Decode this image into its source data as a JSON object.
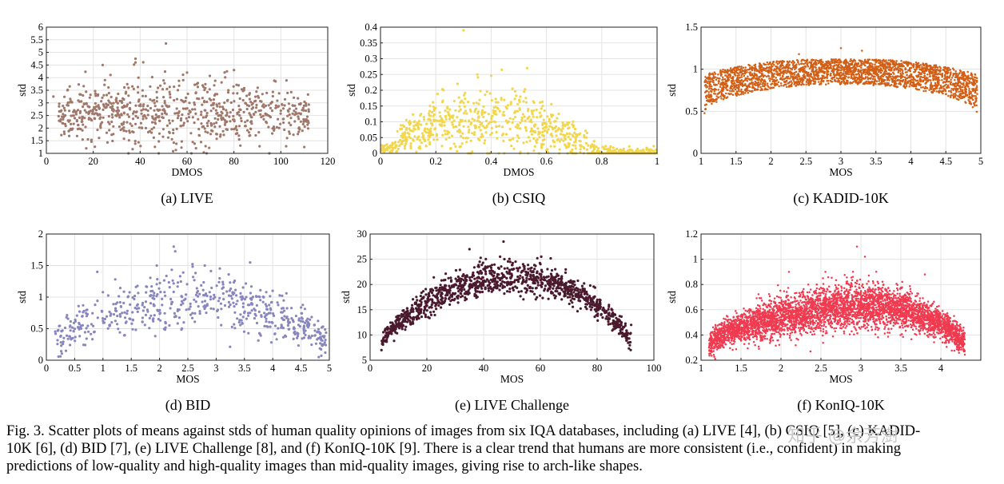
{
  "figure": {
    "caption_lines": [
      "Fig. 3.  Scatter plots of means against stds of human quality opinions of images from six IQA databases, including (a) LIVE [4], (b) CSIQ [5], (c) KADID-",
      "10K [6], (d) BID [7], (e) LIVE Challenge [8], and (f) KonIQ-10K [9]. There is a clear trend that humans are more consistent (i.e., confident) in making",
      "predictions of low-quality and high-quality images than mid-quality images, giving rise to arch-like shapes."
    ],
    "watermark": "知乎 @余芳澍"
  },
  "chart_data": [
    {
      "type": "scatter",
      "id": "a",
      "subcaption": "(a) LIVE",
      "xlabel": "DMOS",
      "ylabel": "std",
      "color": "#a0786a",
      "xlim": [
        0,
        120
      ],
      "ylim": [
        1,
        6
      ],
      "xticks": [
        0,
        20,
        40,
        60,
        80,
        100,
        120
      ],
      "yticks": [
        1,
        1.5,
        2,
        2.5,
        3,
        3.5,
        4,
        4.5,
        5,
        5.5,
        6
      ],
      "ytick_labels": [
        "1",
        "1.5",
        "2",
        "2.5",
        "3",
        "3.5",
        "4",
        "4.5",
        "5",
        "5.5",
        "6"
      ],
      "trend": {
        "kind": "flat",
        "x_range": [
          5,
          112
        ],
        "center": 2.6,
        "spread": 0.55
      },
      "outliers": [
        [
          51,
          5.35
        ],
        [
          38,
          4.75
        ],
        [
          38,
          4.6
        ],
        [
          24,
          4.5
        ],
        [
          80,
          4.3
        ],
        [
          77,
          4.25
        ],
        [
          60,
          4.2
        ],
        [
          3,
          3.25
        ],
        [
          110,
          1.25
        ],
        [
          17,
          1.2
        ]
      ],
      "n_points": 780
    },
    {
      "type": "scatter",
      "id": "b",
      "subcaption": "(b) CSIQ",
      "xlabel": "DMOS",
      "ylabel": "std",
      "color": "#f2d74e",
      "xlim": [
        0,
        1
      ],
      "ylim": [
        0,
        0.4
      ],
      "xticks": [
        0,
        0.2,
        0.4,
        0.6,
        0.8,
        1
      ],
      "xtick_labels": [
        "0",
        "0.2",
        "0.4",
        "0.6",
        "0.8",
        "1"
      ],
      "yticks": [
        0,
        0.05,
        0.1,
        0.15,
        0.2,
        0.25,
        0.3,
        0.35,
        0.4
      ],
      "ytick_labels": [
        "0",
        "0.05",
        "0.1",
        "0.15",
        "0.2",
        "0.25",
        "0.3",
        "0.35",
        "0.4"
      ],
      "trend": {
        "kind": "arch_lower",
        "x_range": [
          0,
          1
        ],
        "peak": 0.11,
        "spread": 0.045
      },
      "outliers": [
        [
          0.3,
          0.39
        ],
        [
          0.53,
          0.27
        ],
        [
          0.35,
          0.25
        ],
        [
          0.95,
          0.01
        ],
        [
          0.98,
          0.01
        ]
      ],
      "n_points": 900
    },
    {
      "type": "scatter",
      "id": "c",
      "subcaption": "(c) KADID-10K",
      "xlabel": "MOS",
      "ylabel": "std",
      "color": "#d25f16",
      "xlim": [
        1,
        5
      ],
      "ylim": [
        0,
        1.5
      ],
      "xticks": [
        1,
        1.5,
        2,
        2.5,
        3,
        3.5,
        4,
        4.5,
        5
      ],
      "xtick_labels": [
        "1",
        "1.5",
        "2",
        "2.5",
        "3",
        "3.5",
        "4",
        "4.5",
        "5"
      ],
      "yticks": [
        0,
        0.5,
        1,
        1.5
      ],
      "ytick_labels": [
        "0",
        "0.5",
        "1",
        "1.5"
      ],
      "trend": {
        "kind": "arch_band",
        "x_range": [
          1.05,
          4.95
        ],
        "top": 1.12,
        "bottom_peak": 0.82,
        "bottom_edge": 0.45
      },
      "outliers": [
        [
          3.0,
          1.25
        ],
        [
          3.3,
          1.22
        ],
        [
          2.4,
          1.18
        ]
      ],
      "n_points": 2600
    },
    {
      "type": "scatter",
      "id": "d",
      "subcaption": "(d) BID",
      "xlabel": "MOS",
      "ylabel": "std",
      "color": "#8886be",
      "xlim": [
        0,
        5
      ],
      "ylim": [
        0,
        2
      ],
      "xticks": [
        0,
        0.5,
        1,
        1.5,
        2,
        2.5,
        3,
        3.5,
        4,
        4.5,
        5
      ],
      "xtick_labels": [
        "0",
        "0.5",
        "1",
        "1.5",
        "2",
        "2.5",
        "3",
        "3.5",
        "4",
        "4.5",
        "5"
      ],
      "yticks": [
        0,
        0.5,
        1,
        1.5,
        2
      ],
      "ytick_labels": [
        "0",
        "0.5",
        "1",
        "1.5",
        "2"
      ],
      "trend": {
        "kind": "arch",
        "x_range": [
          0.15,
          4.95
        ],
        "peak": 0.95,
        "edge": 0.25,
        "spread": 0.22
      },
      "outliers": [
        [
          2.25,
          1.8
        ],
        [
          0.9,
          1.4
        ],
        [
          1.95,
          1.5
        ],
        [
          3.6,
          1.55
        ],
        [
          2.8,
          1.5
        ]
      ],
      "n_points": 600
    },
    {
      "type": "scatter",
      "id": "e",
      "subcaption": "(e) LIVE Challenge",
      "xlabel": "MOS",
      "ylabel": "std",
      "color": "#4a1a2c",
      "xlim": [
        0,
        100
      ],
      "ylim": [
        5,
        30
      ],
      "xticks": [
        0,
        20,
        40,
        60,
        80,
        100
      ],
      "yticks": [
        5,
        10,
        15,
        20,
        25,
        30
      ],
      "ytick_labels": [
        "5",
        "10",
        "15",
        "20",
        "25",
        "30"
      ],
      "trend": {
        "kind": "arch",
        "x_range": [
          4,
          92
        ],
        "peak": 21.5,
        "edge": 8,
        "spread": 1.6,
        "peak_x": 52
      },
      "outliers": [
        [
          47,
          28.5
        ],
        [
          35,
          27
        ],
        [
          4,
          7
        ],
        [
          92,
          12
        ]
      ],
      "n_points": 1150
    },
    {
      "type": "scatter",
      "id": "f",
      "subcaption": "(f) KonIQ-10K",
      "xlabel": "MOS",
      "ylabel": "std",
      "color": "#f03a50",
      "xlim": [
        1,
        4.5
      ],
      "ylim": [
        0.2,
        1.2
      ],
      "xticks": [
        1,
        1.5,
        2,
        2.5,
        3,
        3.5,
        4
      ],
      "xtick_labels": [
        "1",
        "1.5",
        "2",
        "2.5",
        "3",
        "3.5",
        "4"
      ],
      "yticks": [
        0.2,
        0.4,
        0.6,
        0.8,
        1,
        1.2
      ],
      "ytick_labels": [
        "0.2",
        "0.4",
        "0.6",
        "0.8",
        "1",
        "1.2"
      ],
      "trend": {
        "kind": "dense",
        "x_range": [
          1.1,
          4.3
        ],
        "peak": 0.62,
        "edge": 0.3,
        "spread": 0.075
      },
      "outliers": [
        [
          2.95,
          1.1
        ],
        [
          3.05,
          1.02
        ],
        [
          2.1,
          0.9
        ],
        [
          3.8,
          0.88
        ],
        [
          1.1,
          0.3
        ]
      ],
      "n_points": 4200
    }
  ]
}
